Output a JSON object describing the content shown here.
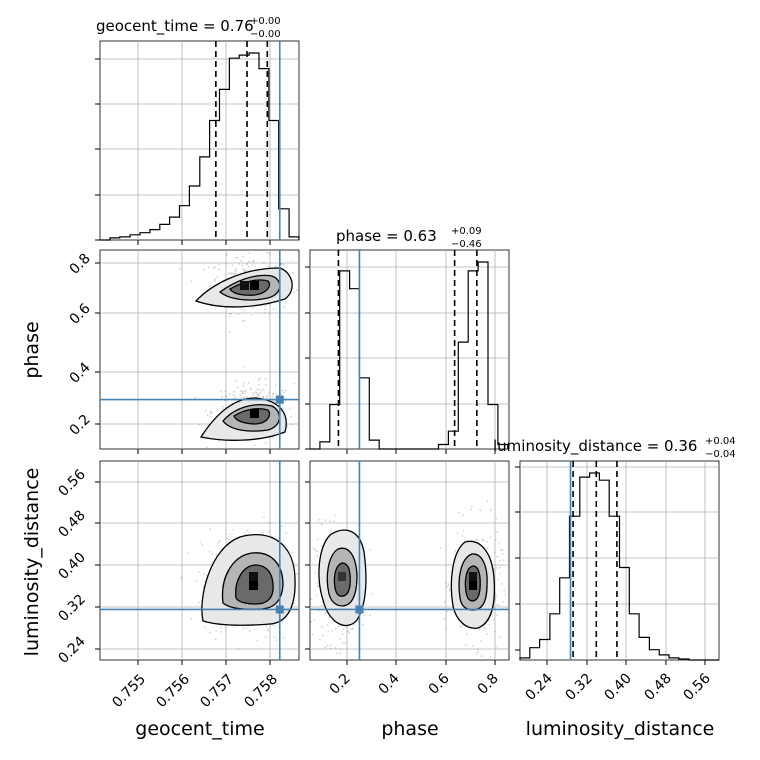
{
  "colors": {
    "truth": "#4682b4",
    "hist": "#000000",
    "grid": "#b0b0b0",
    "scatter": "#808080"
  },
  "axis_labels": {
    "geocent_time": "geocent_time",
    "phase": "phase",
    "luminosity_distance": "luminosity_distance"
  },
  "titles": {
    "geocent_time": {
      "main": "geocent_time = 0.76",
      "sup": "+0.00",
      "sub": "−0.00"
    },
    "phase": {
      "main": "phase = 0.63",
      "sup": "+0.09",
      "sub": "−0.46"
    },
    "luminosity_distance": {
      "main": "luminosity_distance = 0.36",
      "sup": "+0.04",
      "sub": "−0.04"
    }
  },
  "chart_data": {
    "type": "corner",
    "parameters": [
      "geocent_time",
      "phase",
      "luminosity_distance"
    ],
    "ranges": {
      "geocent_time": [
        0.75465,
        0.75848
      ],
      "phase": [
        0.05,
        0.855
      ],
      "luminosity_distance": [
        0.217,
        0.603
      ]
    },
    "ticks": {
      "geocent_time": [
        "0.755",
        "0.756",
        "0.757",
        "0.758"
      ],
      "phase": [
        "0.2",
        "0.4",
        "0.6",
        "0.8"
      ],
      "luminosity_distance": [
        "0.24",
        "0.32",
        "0.40",
        "0.48",
        "0.56"
      ]
    },
    "truths": {
      "geocent_time": 0.75811,
      "phase": 0.25,
      "luminosity_distance": 0.315
    },
    "quantiles": {
      "geocent_time": [
        0.75688,
        0.75748,
        0.75787
      ],
      "phase": [
        0.165,
        0.635,
        0.725
      ],
      "luminosity_distance": [
        0.32,
        0.365,
        0.405
      ]
    },
    "histograms": {
      "geocent_time": {
        "edges": [
          0.75465,
          0.75484,
          0.75503,
          0.75523,
          0.75542,
          0.75561,
          0.7558,
          0.75599,
          0.75618,
          0.75637,
          0.75657,
          0.75676,
          0.75695,
          0.75714,
          0.75733,
          0.75752,
          0.75771,
          0.7579,
          0.75809,
          0.75829,
          0.75848
        ],
        "counts": [
          0,
          2,
          3,
          5,
          7,
          10,
          15,
          22,
          33,
          52,
          80,
          115,
          145,
          175,
          178,
          180,
          165,
          115,
          30,
          3
        ]
      },
      "phase": {
        "edges": [
          0.05,
          0.09,
          0.13,
          0.17,
          0.21,
          0.25,
          0.29,
          0.33,
          0.37,
          0.41,
          0.45,
          0.49,
          0.53,
          0.57,
          0.61,
          0.65,
          0.69,
          0.73,
          0.77,
          0.81,
          0.85
        ],
        "counts": [
          0,
          8,
          50,
          200,
          180,
          80,
          10,
          0,
          0,
          0,
          0,
          0,
          0,
          5,
          20,
          120,
          200,
          210,
          50,
          5
        ]
      },
      "luminosity_distance": {
        "edges": [
          0.217,
          0.236,
          0.255,
          0.275,
          0.294,
          0.313,
          0.333,
          0.352,
          0.371,
          0.39,
          0.41,
          0.429,
          0.448,
          0.468,
          0.487,
          0.506,
          0.525,
          0.545,
          0.564,
          0.583,
          0.603
        ],
        "counts": [
          2,
          12,
          20,
          45,
          80,
          140,
          178,
          182,
          175,
          140,
          90,
          45,
          22,
          10,
          5,
          2,
          1,
          0,
          0,
          0
        ]
      }
    },
    "density_modes": [
      {
        "pair": [
          "geocent_time",
          "phase"
        ],
        "modes": [
          {
            "cx": 0.75755,
            "cy": 0.715,
            "sx": 0.00028,
            "sy": 0.04
          },
          {
            "cx": 0.7576,
            "cy": 0.2,
            "sx": 0.00028,
            "sy": 0.04
          }
        ]
      },
      {
        "pair": [
          "geocent_time",
          "luminosity_distance"
        ],
        "modes": [
          {
            "cx": 0.75752,
            "cy": 0.363,
            "sx": 0.00032,
            "sy": 0.04
          }
        ]
      },
      {
        "pair": [
          "phase",
          "luminosity_distance"
        ],
        "modes": [
          {
            "cx": 0.165,
            "cy": 0.363,
            "sx": 0.035,
            "sy": 0.04
          },
          {
            "cx": 0.725,
            "cy": 0.363,
            "sx": 0.035,
            "sy": 0.04
          }
        ]
      }
    ]
  }
}
